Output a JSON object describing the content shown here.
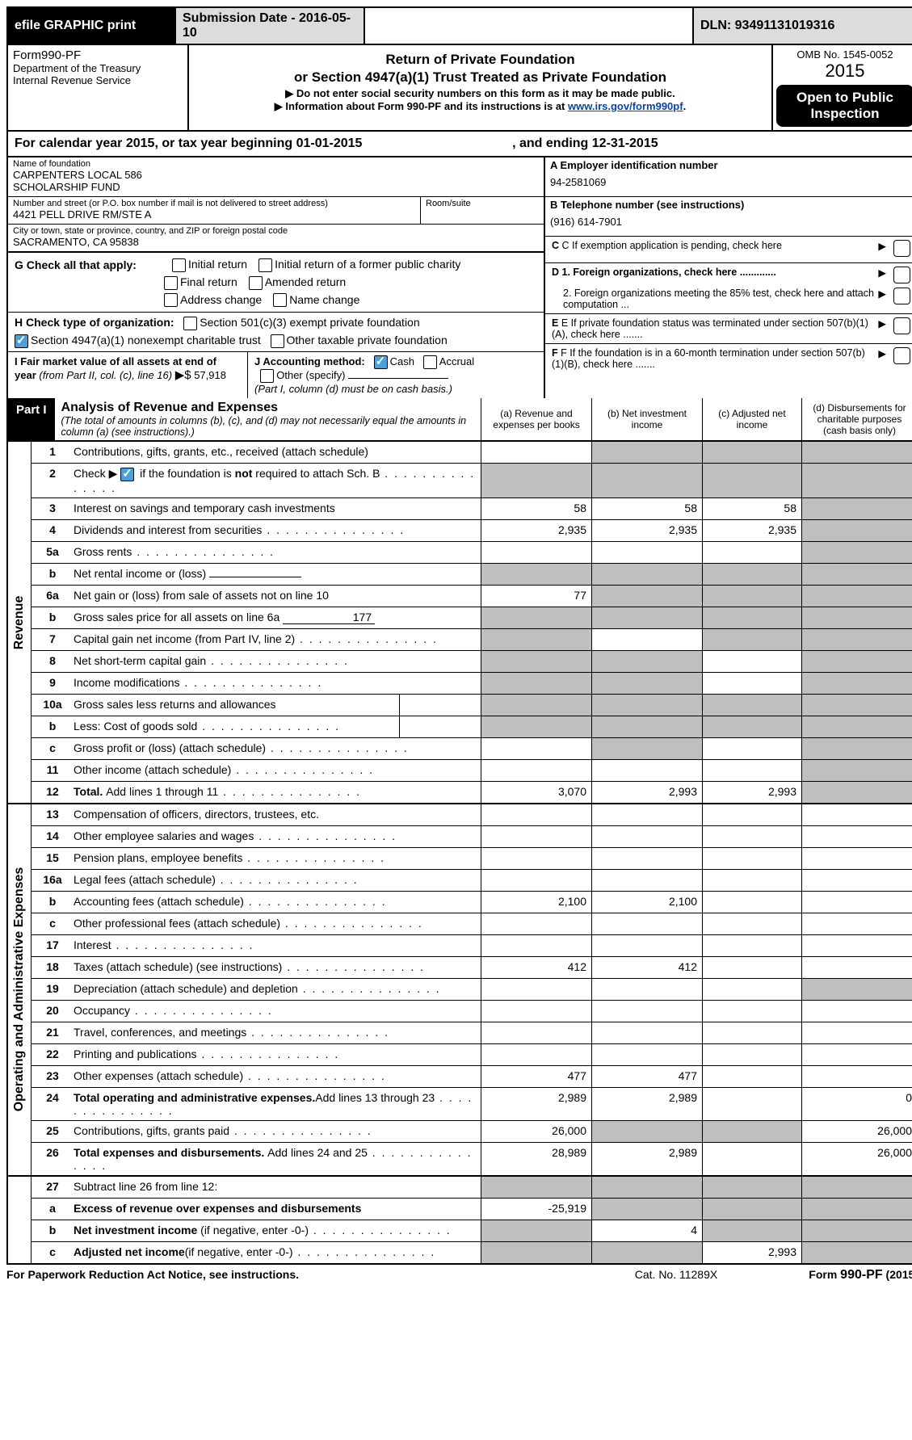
{
  "topbar": {
    "efile": "efile GRAPHIC print",
    "sub_date": "Submission Date - 2016-05-10",
    "dln": "DLN: 93491131019316"
  },
  "header": {
    "form": "Form990-PF",
    "dept1": "Department of the Treasury",
    "dept2": "Internal Revenue Service",
    "title1": "Return of Private Foundation",
    "title2": "or Section 4947(a)(1) Trust Treated as Private Foundation",
    "warn": "▶ Do not enter social security numbers on this form as it may be made public.",
    "info": "▶ Information about Form 990-PF and its instructions is at ",
    "link": "www.irs.gov/form990pf",
    "omb": "OMB No. 1545-0052",
    "year": "2015",
    "open": "Open to Public Inspection"
  },
  "calyear": {
    "begin": "For calendar year 2015, or tax year beginning 01-01-2015",
    "end": ", and ending 12-31-2015"
  },
  "entity": {
    "name_lbl": "Name of foundation",
    "name1": "CARPENTERS LOCAL 586",
    "name2": "SCHOLARSHIP FUND",
    "addr_lbl": "Number and street (or P.O. box number if mail is not delivered to street address)",
    "addr": "4421 PELL DRIVE RM/STE A",
    "room_lbl": "Room/suite",
    "city_lbl": "City or town, state or province, country, and ZIP or foreign postal code",
    "city": "SACRAMENTO, CA  95838",
    "ein_lbl": "A Employer identification number",
    "ein": "94-2581069",
    "tel_lbl": "B Telephone number (see instructions)",
    "tel": "(916) 614-7901",
    "c_lbl": "C  If exemption application is pending, check here",
    "d1": "D 1.  Foreign organizations, check here .............",
    "d2": "2.  Foreign organizations meeting the 85% test, check here and attach computation ...",
    "e_lbl": "E  If private foundation status was terminated under section 507(b)(1)(A), check here .......",
    "f_lbl": "F  If the foundation is in a 60-month termination under section 507(b)(1)(B), check here ......."
  },
  "g": {
    "label": "G Check all that apply:",
    "o1": "Initial return",
    "o2": "Initial return of a former public charity",
    "o3": "Final return",
    "o4": "Amended return",
    "o5": "Address change",
    "o6": "Name change"
  },
  "h": {
    "label": "H Check type of organization:",
    "o1": "Section 501(c)(3) exempt private foundation",
    "o2": "Section 4947(a)(1) nonexempt charitable trust",
    "o3": "Other taxable private foundation"
  },
  "i": {
    "label": "I Fair market value of all assets at end of year ",
    "paren": "(from Part II, col. (c), line 16)",
    "arrow": "▶$",
    "val": "  57,918"
  },
  "j": {
    "label": "J Accounting method:",
    "o1": "Cash",
    "o2": "Accrual",
    "o3": "Other (specify)",
    "note": "(Part I, column (d) must be on cash basis.)"
  },
  "part1": {
    "label": "Part I",
    "title": "Analysis of Revenue and Expenses",
    "sub": "(The total of amounts in columns (b), (c), and (d) may not necessarily equal the amounts in column (a) (see instructions).)",
    "col_a": "(a) Revenue and expenses per books",
    "col_b": "(b) Net investment income",
    "col_c": "(c) Adjusted net income",
    "col_d": "(d) Disbursements for charitable purposes (cash basis only)"
  },
  "rev_label": "Revenue",
  "exp_label": "Operating and Administrative Expenses",
  "rows": {
    "r1": {
      "n": "1",
      "l": "Contributions, gifts, grants, etc., received (attach schedule)",
      "a": "",
      "b": "_S",
      "c": "_S",
      "d": "_S"
    },
    "r2": {
      "n": "2",
      "pre": "Check ▶",
      "l": "if the foundation is ",
      "bold": "not",
      "l2": " required to attach Sch. B",
      "a": "_S",
      "b": "_S",
      "c": "_S",
      "d": "_S"
    },
    "r3": {
      "n": "3",
      "l": "Interest on savings and temporary cash investments",
      "a": "58",
      "b": "58",
      "c": "58",
      "d": "_S"
    },
    "r4": {
      "n": "4",
      "l": "Dividends and interest from securities",
      "a": "2,935",
      "b": "2,935",
      "c": "2,935",
      "d": "_S"
    },
    "r5a": {
      "n": "5a",
      "l": "Gross rents",
      "a": "",
      "b": "",
      "c": "",
      "d": "_S"
    },
    "r5b": {
      "n": "b",
      "l": "Net rental income or (loss)",
      "a": "_S",
      "b": "_S",
      "c": "_S",
      "d": "_S"
    },
    "r6a": {
      "n": "6a",
      "l": "Net gain or (loss) from sale of assets not on line 10",
      "a": "77",
      "b": "_S",
      "c": "_S",
      "d": "_S"
    },
    "r6b": {
      "n": "b",
      "l": "Gross sales price for all assets on line 6a",
      "v": "177",
      "a": "_S",
      "b": "_S",
      "c": "_S",
      "d": "_S"
    },
    "r7": {
      "n": "7",
      "l": "Capital gain net income (from Part IV, line 2)",
      "a": "_S",
      "b": "",
      "c": "_S",
      "d": "_S"
    },
    "r8": {
      "n": "8",
      "l": "Net short-term capital gain",
      "a": "_S",
      "b": "_S",
      "c": "",
      "d": "_S"
    },
    "r9": {
      "n": "9",
      "l": "Income modifications",
      "a": "_S",
      "b": "_S",
      "c": "",
      "d": "_S"
    },
    "r10a": {
      "n": "10a",
      "l": "Gross sales less returns and allowances",
      "a": "_S",
      "b": "_S",
      "c": "_S",
      "d": "_S"
    },
    "r10b": {
      "n": "b",
      "l": "Less: Cost of goods sold",
      "a": "_S",
      "b": "_S",
      "c": "_S",
      "d": "_S"
    },
    "r10c": {
      "n": "c",
      "l": "Gross profit or (loss) (attach schedule)",
      "a": "",
      "b": "_S",
      "c": "",
      "d": "_S"
    },
    "r11": {
      "n": "11",
      "l": "Other income (attach schedule)",
      "a": "",
      "b": "",
      "c": "",
      "d": "_S"
    },
    "r12": {
      "n": "12",
      "l": "Total. ",
      "l2": "Add lines 1 through 11",
      "a": "3,070",
      "b": "2,993",
      "c": "2,993",
      "d": "_S"
    },
    "r13": {
      "n": "13",
      "l": "Compensation of officers, directors, trustees, etc.",
      "a": "",
      "b": "",
      "c": "",
      "d": ""
    },
    "r14": {
      "n": "14",
      "l": "Other employee salaries and wages",
      "a": "",
      "b": "",
      "c": "",
      "d": ""
    },
    "r15": {
      "n": "15",
      "l": "Pension plans, employee benefits",
      "a": "",
      "b": "",
      "c": "",
      "d": ""
    },
    "r16a": {
      "n": "16a",
      "l": "Legal fees (attach schedule)",
      "a": "",
      "b": "",
      "c": "",
      "d": ""
    },
    "r16b": {
      "n": "b",
      "l": "Accounting fees (attach schedule)",
      "a": "2,100",
      "b": "2,100",
      "c": "",
      "d": ""
    },
    "r16c": {
      "n": "c",
      "l": "Other professional fees (attach schedule)",
      "a": "",
      "b": "",
      "c": "",
      "d": ""
    },
    "r17": {
      "n": "17",
      "l": "Interest",
      "a": "",
      "b": "",
      "c": "",
      "d": ""
    },
    "r18": {
      "n": "18",
      "l": "Taxes (attach schedule) (see instructions)",
      "a": "412",
      "b": "412",
      "c": "",
      "d": ""
    },
    "r19": {
      "n": "19",
      "l": "Depreciation (attach schedule) and depletion",
      "a": "",
      "b": "",
      "c": "",
      "d": "_S"
    },
    "r20": {
      "n": "20",
      "l": "Occupancy",
      "a": "",
      "b": "",
      "c": "",
      "d": ""
    },
    "r21": {
      "n": "21",
      "l": "Travel, conferences, and meetings",
      "a": "",
      "b": "",
      "c": "",
      "d": ""
    },
    "r22": {
      "n": "22",
      "l": "Printing and publications",
      "a": "",
      "b": "",
      "c": "",
      "d": ""
    },
    "r23": {
      "n": "23",
      "l": "Other expenses (attach schedule)",
      "a": "477",
      "b": "477",
      "c": "",
      "d": ""
    },
    "r24": {
      "n": "24",
      "l": "Total operating and administrative expenses.",
      "l2": "Add lines 13 through 23",
      "a": "2,989",
      "b": "2,989",
      "c": "",
      "d": "0"
    },
    "r25": {
      "n": "25",
      "l": "Contributions, gifts, grants paid",
      "a": "26,000",
      "b": "_S",
      "c": "_S",
      "d": "26,000"
    },
    "r26": {
      "n": "26",
      "l": "Total expenses and disbursements. ",
      "l2": "Add lines 24 and 25",
      "a": "28,989",
      "b": "2,989",
      "c": "",
      "d": "26,000"
    },
    "r27": {
      "n": "27",
      "l": "Subtract line 26 from line 12:",
      "a": "_S",
      "b": "_S",
      "c": "_S",
      "d": "_S"
    },
    "r27a": {
      "n": "a",
      "l": "Excess of revenue over expenses and disbursements",
      "a": "-25,919",
      "b": "_S",
      "c": "_S",
      "d": "_S"
    },
    "r27b": {
      "n": "b",
      "l": "Net investment income ",
      "l2": "(if negative, enter -0-)",
      "a": "_S",
      "b": "4",
      "c": "_S",
      "d": "_S"
    },
    "r27c": {
      "n": "c",
      "l": "Adjusted net income",
      "l2": "(if negative, enter -0-)",
      "a": "_S",
      "b": "_S",
      "c": "2,993",
      "d": "_S"
    }
  },
  "footer": {
    "left": "For Paperwork Reduction Act Notice, see instructions.",
    "center": "Cat. No. 11289X",
    "right": "Form 990-PF (2015)"
  }
}
